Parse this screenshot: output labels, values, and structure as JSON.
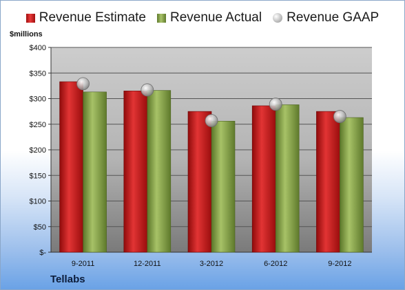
{
  "legend": {
    "estimate": "Revenue Estimate",
    "actual": "Revenue Actual",
    "gaap": "Revenue GAAP"
  },
  "unit_label": "$millions",
  "company": "Tellabs",
  "colors": {
    "estimate": "#c41a1a",
    "actual": "#8aa84a",
    "gaap": "#c0c0c0",
    "plot_top": "#c9c9c9",
    "plot_bottom": "#7c7c7c",
    "grid": "#555555"
  },
  "chart_data": {
    "type": "bar",
    "categories": [
      "9-2011",
      "12-2011",
      "3-2012",
      "6-2012",
      "9-2012"
    ],
    "series": [
      {
        "name": "Revenue Estimate",
        "kind": "bar",
        "values": [
          333,
          315,
          275,
          286,
          275
        ]
      },
      {
        "name": "Revenue Actual",
        "kind": "bar",
        "values": [
          313,
          316,
          256,
          288,
          263
        ]
      },
      {
        "name": "Revenue GAAP",
        "kind": "marker",
        "values": [
          329,
          317,
          257,
          289,
          265
        ]
      }
    ],
    "ylim": [
      0,
      400
    ],
    "yticks": [
      0,
      50,
      100,
      150,
      200,
      250,
      300,
      350,
      400
    ],
    "ytick_labels": [
      "$-",
      "$50",
      "$100",
      "$150",
      "$200",
      "$250",
      "$300",
      "$350",
      "$400"
    ],
    "ylabel": "$millions",
    "grid": true,
    "legend_position": "top"
  }
}
